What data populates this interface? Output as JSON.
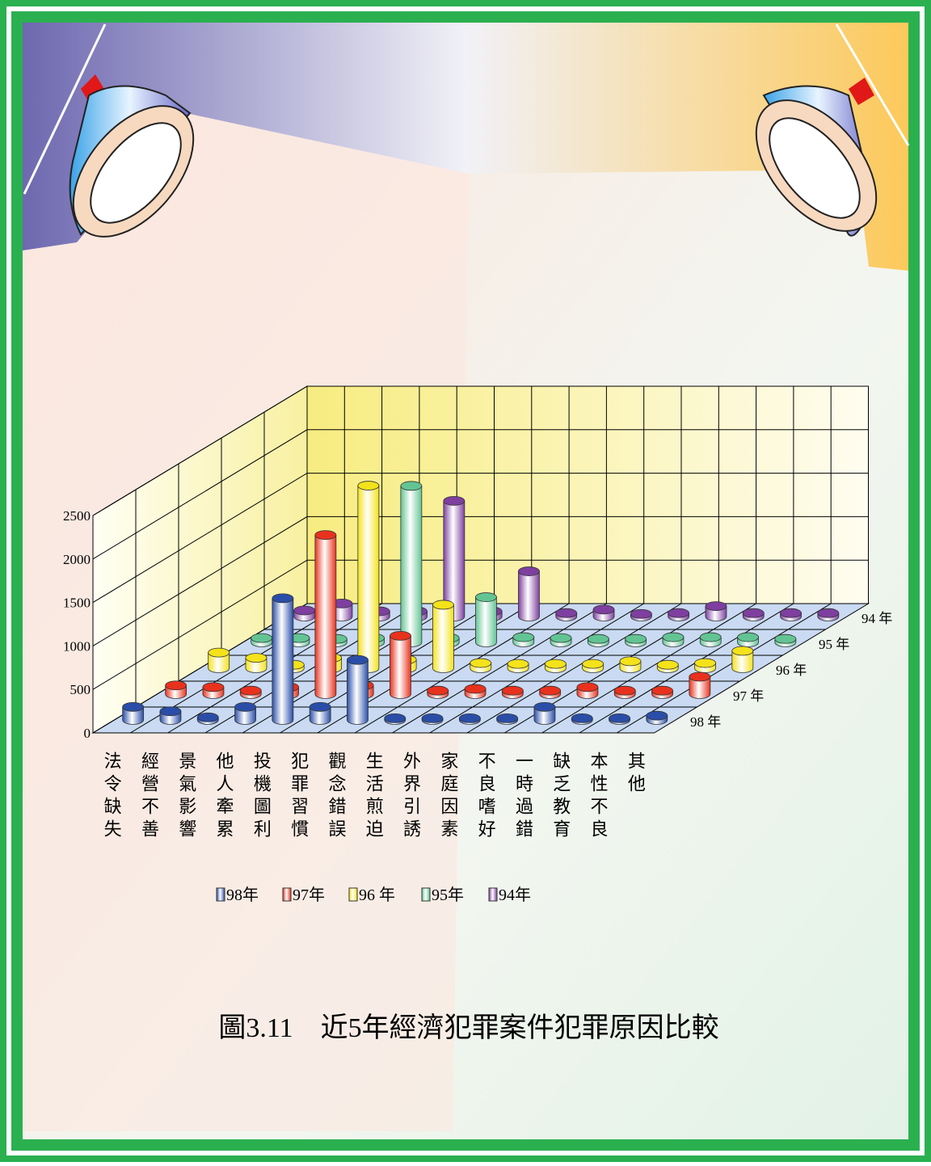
{
  "chart_data": {
    "type": "bar3d",
    "title": "圖3.11　近5年經濟犯罪案件犯罪原因比較",
    "categories": [
      "法令缺失",
      "經營不善",
      "景氣影響",
      "他人牽累",
      "投機圖利",
      "犯罪習慣",
      "觀念錯誤",
      "生活煎迫",
      "外界引誘",
      "家庭因素",
      "不良嗜好",
      "一時過錯",
      "缺乏教育",
      "本性不良",
      "其他"
    ],
    "series": [
      {
        "name": "98年",
        "color": "#2a4ea8",
        "values": [
          150,
          100,
          30,
          150,
          1400,
          150,
          690,
          20,
          20,
          20,
          20,
          150,
          20,
          20,
          50
        ]
      },
      {
        "name": "97年",
        "color": "#e8321e",
        "values": [
          100,
          80,
          40,
          80,
          1830,
          100,
          670,
          40,
          60,
          40,
          40,
          80,
          40,
          40,
          200
        ]
      },
      {
        "name": "96 年",
        "color": "#f4e21a",
        "values": [
          180,
          120,
          40,
          120,
          2100,
          100,
          730,
          60,
          50,
          50,
          50,
          80,
          40,
          60,
          200
        ]
      },
      {
        "name": "95年",
        "color": "#62c493",
        "values": [
          50,
          50,
          40,
          50,
          1800,
          50,
          520,
          60,
          50,
          40,
          40,
          60,
          60,
          60,
          40
        ]
      },
      {
        "name": "94年",
        "color": "#7e3fa0",
        "values": [
          70,
          150,
          60,
          60,
          1330,
          60,
          520,
          40,
          80,
          30,
          40,
          120,
          40,
          40,
          40
        ]
      }
    ],
    "row_labels": [
      "98 年",
      "97 年",
      "96 年",
      "95 年",
      "94 年"
    ],
    "ylim": [
      0,
      2500
    ],
    "yticks": [
      0,
      500,
      1000,
      1500,
      2000,
      2500
    ],
    "grid": true
  }
}
